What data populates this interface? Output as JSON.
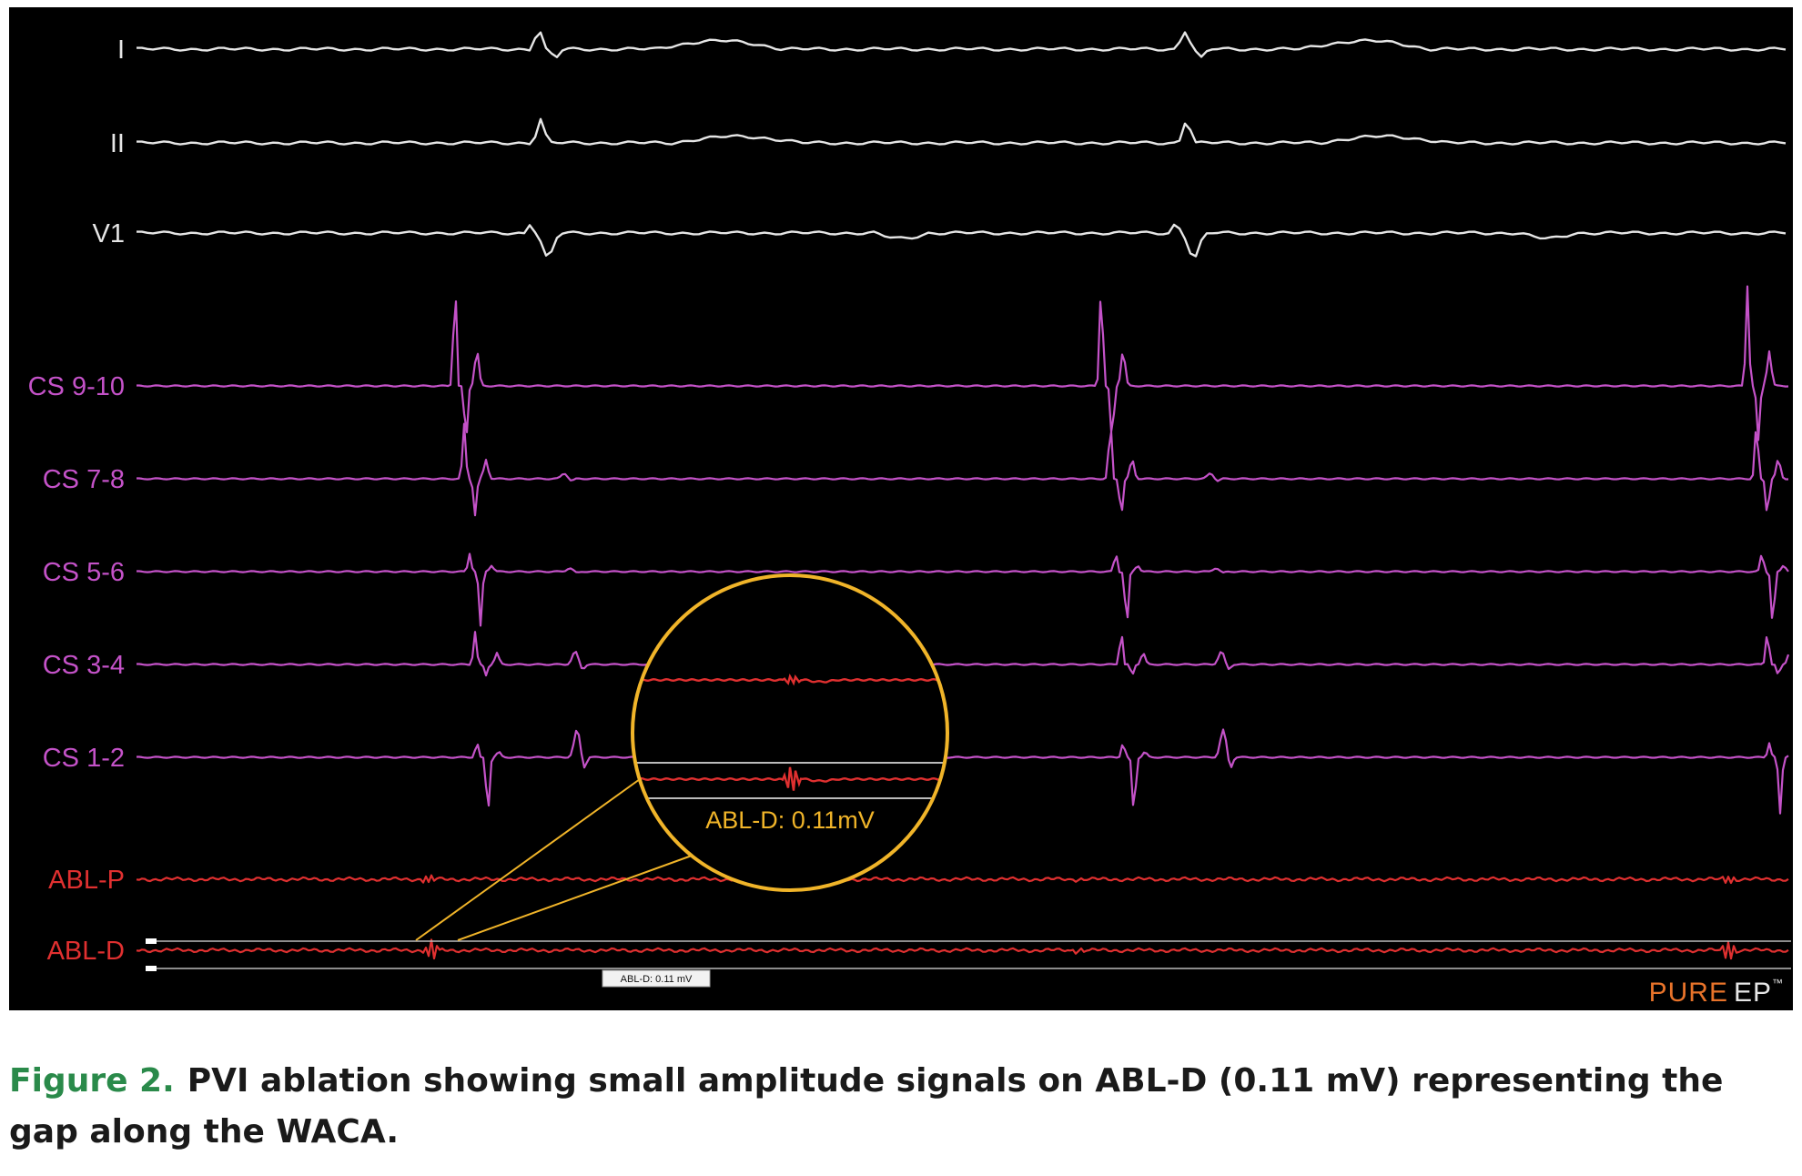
{
  "figure": {
    "leads": [
      {
        "id": "I",
        "label": "I",
        "color": "#e6e6e6"
      },
      {
        "id": "II",
        "label": "II",
        "color": "#e6e6e6"
      },
      {
        "id": "V1",
        "label": "V1",
        "color": "#e6e6e6"
      },
      {
        "id": "CS910",
        "label": "CS 9-10",
        "color": "#c452c8"
      },
      {
        "id": "CS78",
        "label": "CS 7-8",
        "color": "#c452c8"
      },
      {
        "id": "CS56",
        "label": "CS 5-6",
        "color": "#c452c8"
      },
      {
        "id": "CS34",
        "label": "CS 3-4",
        "color": "#c452c8"
      },
      {
        "id": "CS12",
        "label": "CS 1-2",
        "color": "#c452c8"
      },
      {
        "id": "ABLP",
        "label": "ABL-P",
        "color": "#e03030"
      },
      {
        "id": "ABLD",
        "label": "ABL-D",
        "color": "#e03030"
      }
    ],
    "zoom_label": "ABL-D: 0.11mV",
    "small_label": "ABL-D: 0.11 mV",
    "zoom_color": "#f0b429",
    "brand": {
      "left": "PURE",
      "right": "EP",
      "tm": "™",
      "left_color": "#e8732a",
      "right_color": "#e6e6e6"
    }
  },
  "caption": {
    "label": "Figure 2.",
    "text": "PVI ablation showing small amplitude signals on ABL-D (0.11 mV) representing the gap along the WACA."
  }
}
